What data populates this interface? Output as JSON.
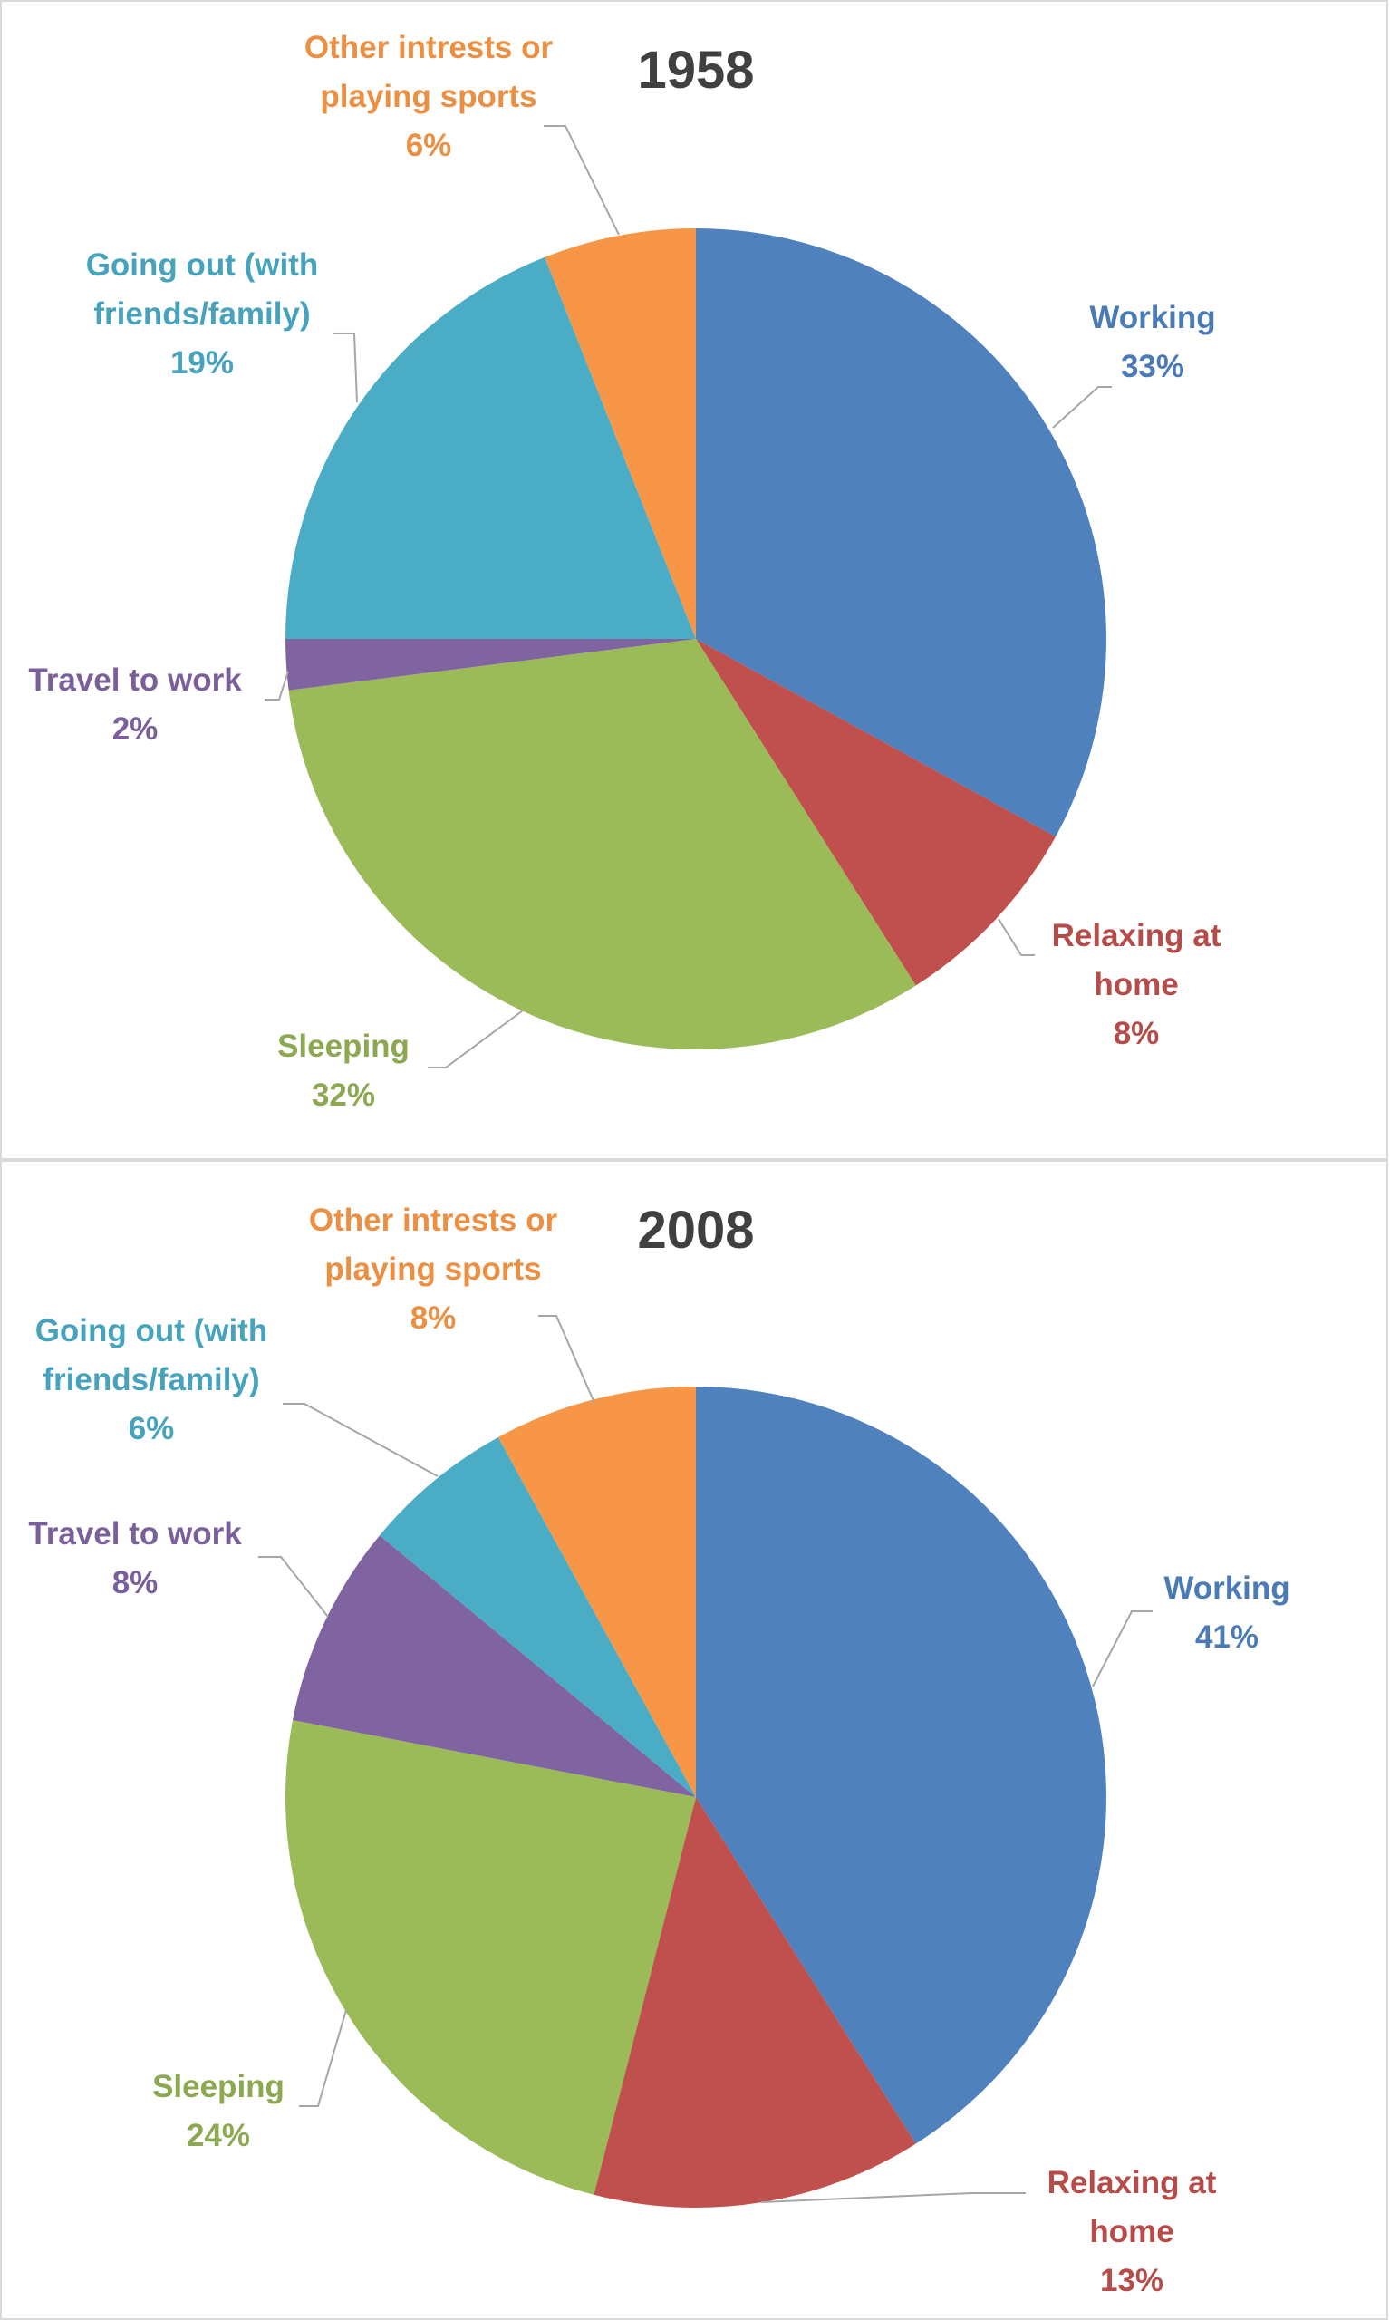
{
  "chart_data": [
    {
      "type": "pie",
      "title": "1958",
      "slices": [
        {
          "label": "Working",
          "value": 33,
          "display": "33%",
          "color": "#4f81bd"
        },
        {
          "label": "Relaxing at home",
          "value": 8,
          "display": "8%",
          "color": "#c0504d"
        },
        {
          "label": "Sleeping",
          "value": 32,
          "display": "32%",
          "color": "#9bbb59"
        },
        {
          "label": "Travel to work",
          "value": 2,
          "display": "2%",
          "color": "#8064a2"
        },
        {
          "label": "Going out (with friends/family)",
          "value": 19,
          "display": "19%",
          "color": "#4bacc6"
        },
        {
          "label": "Other intrests or playing sports",
          "value": 6,
          "display": "6%",
          "color": "#f79646"
        }
      ]
    },
    {
      "type": "pie",
      "title": "2008",
      "slices": [
        {
          "label": "Working",
          "value": 41,
          "display": "41%",
          "color": "#4f81bd"
        },
        {
          "label": "Relaxing at home",
          "value": 13,
          "display": "13%",
          "color": "#c0504d"
        },
        {
          "label": "Sleeping",
          "value": 24,
          "display": "24%",
          "color": "#9bbb59"
        },
        {
          "label": "Travel to work",
          "value": 8,
          "display": "8%",
          "color": "#8064a2"
        },
        {
          "label": "Going out (with friends/family)",
          "value": 6,
          "display": "6%",
          "color": "#4bacc6"
        },
        {
          "label": "Other intrests or playing sports",
          "value": 8,
          "display": "8%",
          "color": "#f79646"
        }
      ]
    }
  ]
}
